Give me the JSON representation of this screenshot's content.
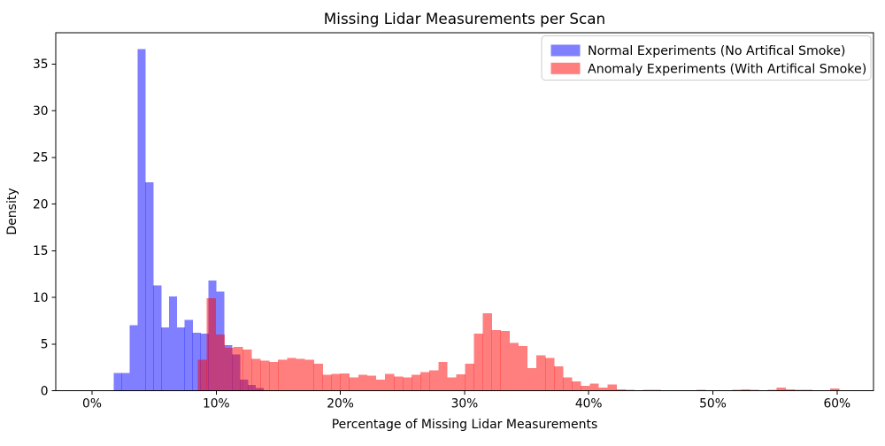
{
  "chart_data": {
    "type": "histogram",
    "title": "Missing Lidar Measurements per Scan",
    "xlabel": "Percentage of Missing Lidar Measurements",
    "ylabel": "Density",
    "x_tick_values": [
      0,
      10,
      20,
      30,
      40,
      50,
      60
    ],
    "x_tick_labels": [
      "0%",
      "10%",
      "20%",
      "30%",
      "40%",
      "50%",
      "60%"
    ],
    "y_tick_values": [
      0,
      5,
      10,
      15,
      20,
      25,
      30,
      35
    ],
    "xlim_pct": [
      -2.9,
      62.9
    ],
    "ylim": [
      0,
      38.3
    ],
    "grid": false,
    "legend_position": "upper right",
    "legend_border_color": "#cccccc",
    "background_color": "#ffffff",
    "series": [
      {
        "name": "Normal Experiments (No Artifical Smoke)",
        "color": "#0000ff",
        "fill": "rgba(0,0,255,0.5)",
        "bin_start_pct": 1.75,
        "bin_width_pct": 0.635,
        "densities": [
          1.9,
          1.9,
          7.0,
          36.6,
          22.3,
          11.3,
          6.8,
          10.1,
          6.8,
          7.6,
          6.2,
          6.1,
          11.8,
          10.6,
          4.9,
          3.9,
          1.2,
          0.6,
          0.3
        ]
      },
      {
        "name": "Anomaly Experiments (With Artifical Smoke)",
        "color": "#ff0000",
        "fill": "rgba(255,0,0,0.5)",
        "bin_start_pct": 8.53,
        "bin_width_pct": 0.717,
        "densities": [
          3.3,
          9.9,
          6.0,
          4.6,
          4.7,
          4.4,
          3.4,
          3.2,
          3.1,
          3.3,
          3.5,
          3.4,
          3.3,
          2.9,
          1.7,
          1.8,
          1.85,
          1.4,
          1.7,
          1.6,
          1.2,
          1.8,
          1.5,
          1.4,
          1.7,
          2.0,
          2.2,
          3.1,
          1.4,
          1.75,
          2.9,
          6.1,
          8.3,
          6.5,
          6.4,
          5.1,
          4.8,
          2.4,
          3.8,
          3.5,
          2.6,
          1.4,
          1.0,
          0.5,
          0.75,
          0.35,
          0.65,
          0.15,
          0.1,
          0,
          0.1,
          0.1,
          0,
          0,
          0,
          0.05,
          0.1,
          0.05,
          0,
          0.05,
          0.1,
          0.15,
          0.1,
          0.05,
          0.1,
          0.35,
          0.15,
          0.1,
          0.1,
          0.05,
          0.05,
          0.25,
          0.05
        ]
      }
    ]
  }
}
